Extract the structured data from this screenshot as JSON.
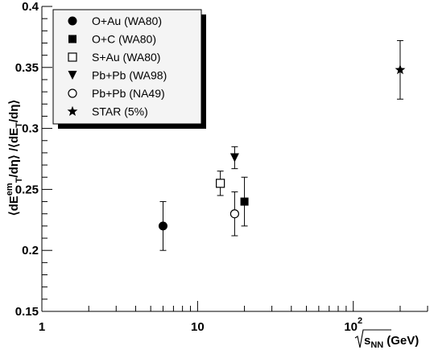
{
  "chart_data": {
    "type": "scatter",
    "title": "",
    "x_scale": "log",
    "xlim": [
      1,
      300
    ],
    "ylim": [
      0.15,
      0.4
    ],
    "xlabel_parts": {
      "radicand": "s",
      "subscript": "NN",
      "unit": "(GeV)"
    },
    "ylabel_parts": {
      "open": "⟨dE",
      "sub1": "T",
      "sup1": "em",
      "mid": "/dη⟩ /⟨dE",
      "sub2": "T",
      "end": "/dη⟩"
    },
    "x_tick_labels": [
      {
        "value": 1,
        "text": "1"
      },
      {
        "value": 10,
        "text": "10"
      },
      {
        "value": 100,
        "base": "10",
        "exp": "2"
      }
    ],
    "y_tick_labels": [
      "0.15",
      "0.2",
      "0.25",
      "0.3",
      "0.35",
      "0.4"
    ],
    "y_tick_values": [
      0.15,
      0.2,
      0.25,
      0.3,
      0.35,
      0.4
    ],
    "grid": false,
    "legend_position": "top-left",
    "series": [
      {
        "name": "O+Au (WA80)",
        "marker": "filled-circle",
        "points": [
          {
            "x": 6,
            "y": 0.22,
            "err": 0.02
          }
        ]
      },
      {
        "name": "O+C (WA80)",
        "marker": "filled-square",
        "points": [
          {
            "x": 20,
            "y": 0.24,
            "err": 0.02
          }
        ]
      },
      {
        "name": "S+Au (WA80)",
        "marker": "open-square",
        "points": [
          {
            "x": 14,
            "y": 0.255,
            "err": 0.01
          }
        ]
      },
      {
        "name": "Pb+Pb (WA98)",
        "marker": "filled-triangle-down",
        "points": [
          {
            "x": 17.3,
            "y": 0.276,
            "err": 0.009
          }
        ]
      },
      {
        "name": "Pb+Pb (NA49)",
        "marker": "open-circle",
        "points": [
          {
            "x": 17.3,
            "y": 0.23,
            "err": 0.018
          }
        ]
      },
      {
        "name": "STAR (5%)",
        "marker": "filled-star",
        "points": [
          {
            "x": 200,
            "y": 0.348,
            "err": 0.024
          }
        ]
      }
    ],
    "colors": {
      "marker": "#000000",
      "axis": "#000000",
      "legend_shadow": "#000000",
      "background": "#ffffff"
    }
  }
}
